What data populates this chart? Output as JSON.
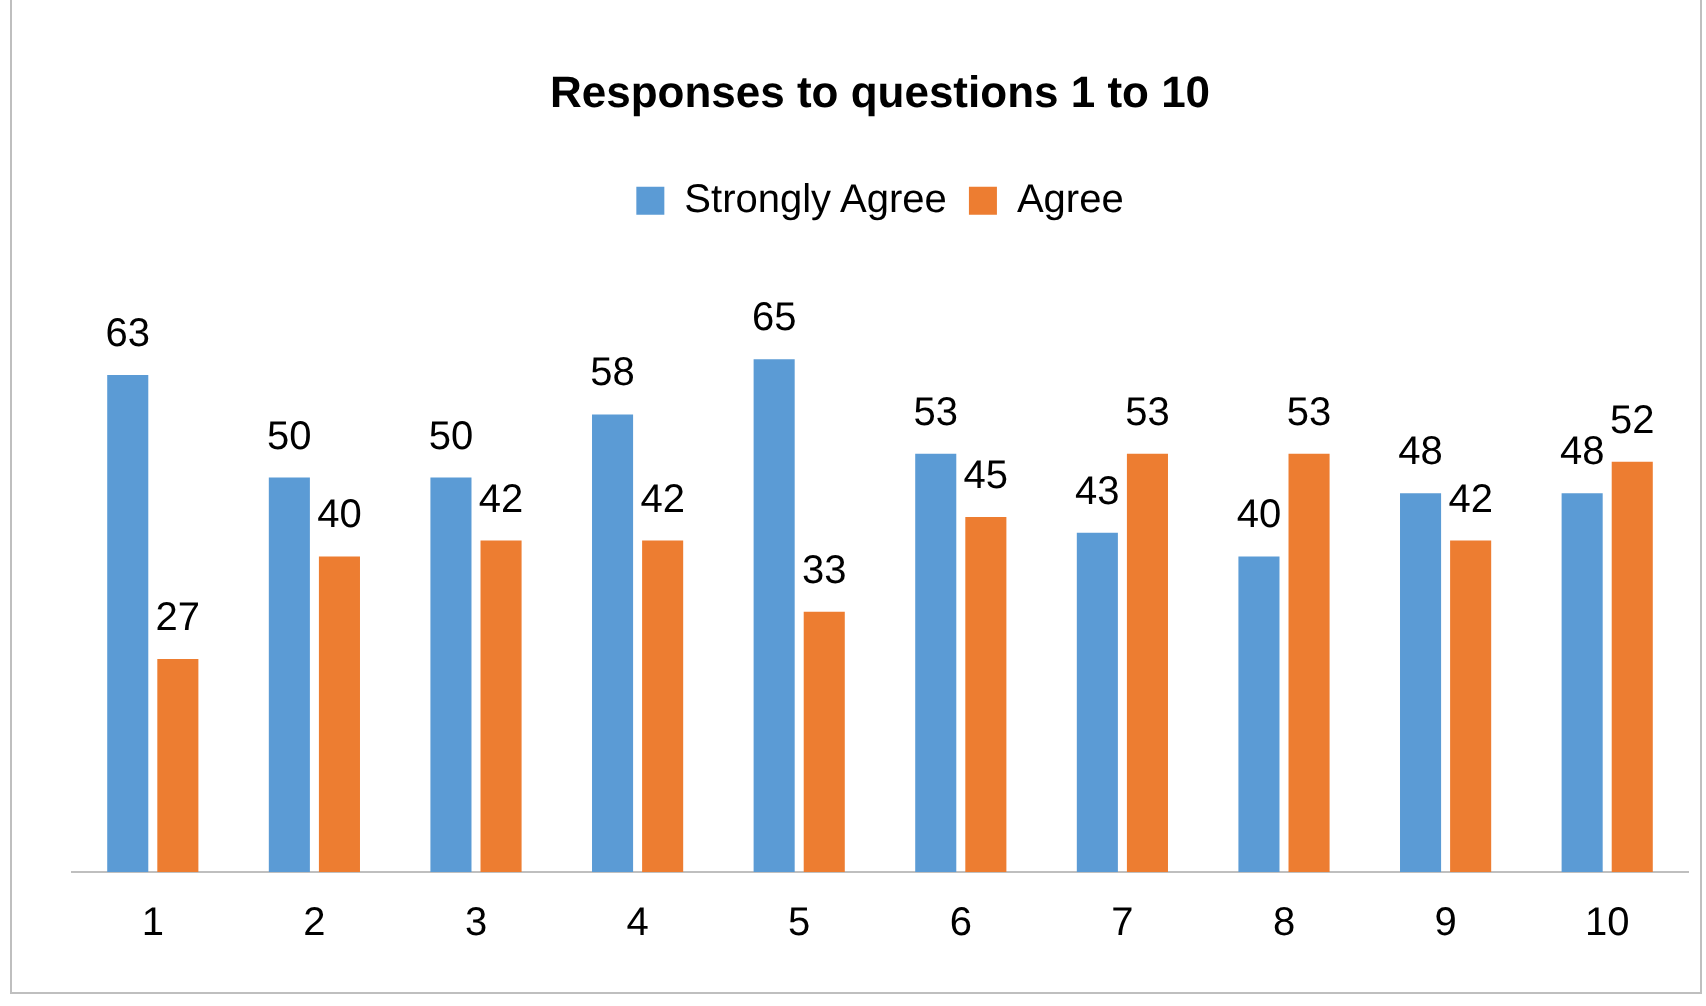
{
  "chart_data": {
    "type": "bar",
    "title": "Responses to questions 1 to 10",
    "categories": [
      "1",
      "2",
      "3",
      "4",
      "5",
      "6",
      "7",
      "8",
      "9",
      "10"
    ],
    "series": [
      {
        "name": "Strongly Agree",
        "color": "#5b9bd5",
        "values": [
          63,
          50,
          50,
          58,
          65,
          53,
          43,
          40,
          48,
          48
        ]
      },
      {
        "name": "Agree",
        "color": "#ed7d31",
        "values": [
          27,
          40,
          42,
          42,
          33,
          45,
          53,
          53,
          42,
          52
        ]
      }
    ],
    "data_labels": true,
    "legend": "top",
    "grid": false
  }
}
